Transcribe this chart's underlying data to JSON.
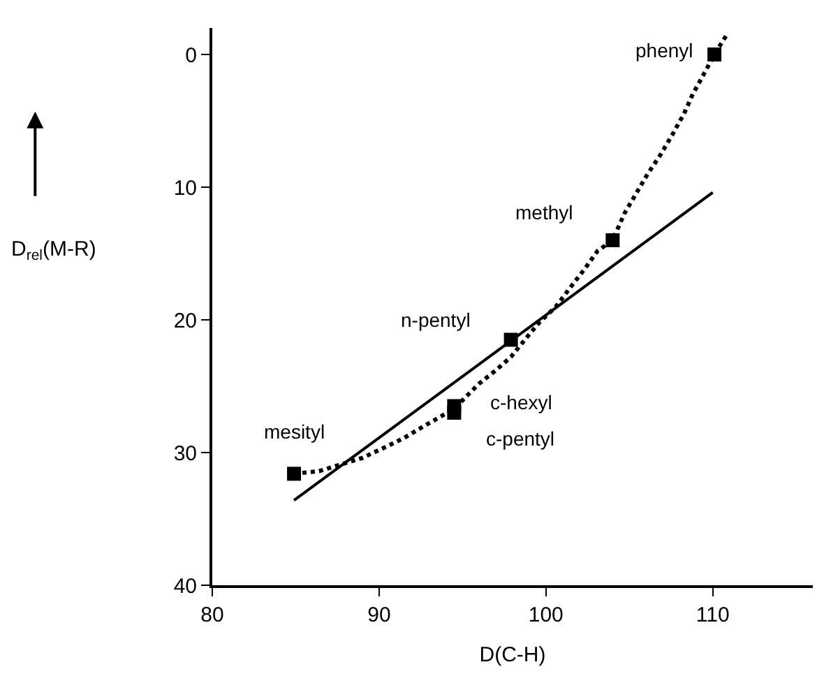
{
  "chart_data": {
    "type": "scatter",
    "xlabel": "D(C-H)",
    "ylabel": "D$_{rel}$(M-R)",
    "xlim": [
      80,
      116
    ],
    "xticks": [
      80,
      90,
      100,
      110
    ],
    "ylim": [
      40,
      -2
    ],
    "yticks": [
      0,
      10,
      20,
      30,
      40
    ],
    "series": [
      {
        "marker": "square",
        "color": "#000000",
        "x": [
          110.1,
          104.0,
          97.9,
          94.5,
          94.5,
          84.9
        ],
        "values": [
          0,
          14.0,
          21.5,
          26.5,
          27.0,
          31.6
        ]
      },
      {
        "type": "line",
        "marker": "none",
        "line_style": "solid",
        "color": "#000000",
        "x": [
          84.9,
          110.0
        ],
        "values": [
          33.6,
          10.4
        ]
      },
      {
        "type": "line",
        "marker": "none",
        "line_style": "dotted",
        "color": "#000000",
        "x": [
          84.9,
          86.4,
          89.0,
          90.2,
          91.5,
          92.7,
          94.5,
          96.0,
          96.9,
          97.9,
          98.8,
          99.6,
          100.6,
          101.5,
          102.3,
          103.1,
          104.0,
          104.7,
          105.4,
          106.1,
          106.9,
          107.6,
          108.3,
          108.8,
          109.5,
          110.1,
          110.9
        ],
        "values": [
          31.6,
          31.4,
          30.4,
          29.7,
          28.9,
          28.0,
          26.7,
          24.8,
          23.9,
          22.8,
          21.4,
          20.2,
          19.0,
          17.5,
          16.2,
          14.8,
          14.0,
          12.0,
          10.5,
          9.0,
          7.5,
          6.0,
          4.4,
          3.0,
          1.4,
          0,
          -1.6
        ]
      }
    ],
    "annotations": [
      {
        "text": "phenyl",
        "x": 110.1,
        "y": 0
      },
      {
        "text": "methyl",
        "x": 104.0,
        "y": 14.0
      },
      {
        "text": "n-pentyl",
        "x": 97.9,
        "y": 21.5
      },
      {
        "text": "c-hexyl",
        "x": 94.5,
        "y": 26.5
      },
      {
        "text": "c-pentyl",
        "x": 94.5,
        "y": 27.0
      },
      {
        "text": "mesityl",
        "x": 84.9,
        "y": 31.6
      }
    ]
  }
}
